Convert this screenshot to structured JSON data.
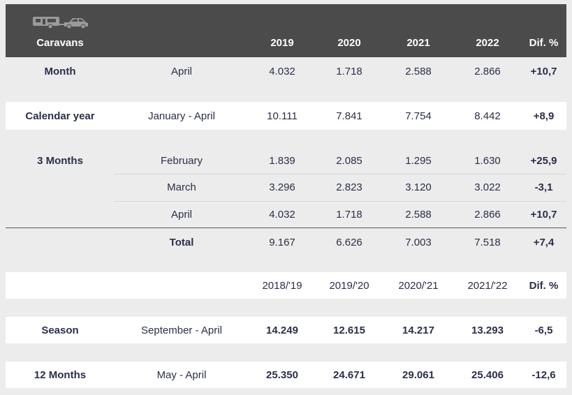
{
  "header": {
    "icon": "caravan-and-car-icon",
    "title": "Caravans",
    "columns": [
      "2019",
      "2020",
      "2021",
      "2022",
      "Dif. %"
    ]
  },
  "rows": {
    "month": {
      "label": "Month",
      "period": "April",
      "values": [
        "4.032",
        "1.718",
        "2.588",
        "2.866"
      ],
      "dif": "+10,7"
    },
    "calendar": {
      "label": "Calendar year",
      "period": "January - April",
      "values": [
        "10.111",
        "7.841",
        "7.754",
        "8.442"
      ],
      "dif": "+8,9"
    },
    "three_months": [
      {
        "label": "3 Months",
        "period": "February",
        "values": [
          "1.839",
          "2.085",
          "1.295",
          "1.630"
        ],
        "dif": "+25,9"
      },
      {
        "label": "",
        "period": "March",
        "values": [
          "3.296",
          "2.823",
          "3.120",
          "3.022"
        ],
        "dif": "-3,1"
      },
      {
        "label": "",
        "period": "April",
        "values": [
          "4.032",
          "1.718",
          "2.588",
          "2.866"
        ],
        "dif": "+10,7"
      }
    ],
    "total": {
      "label": "",
      "period": "Total",
      "values": [
        "9.167",
        "6.626",
        "7.003",
        "7.518"
      ],
      "dif": "+7,4"
    }
  },
  "season_header": {
    "columns": [
      "2018/'19",
      "2019/'20",
      "2020/'21",
      "2021/'22",
      "Dif. %"
    ]
  },
  "season": {
    "label": "Season",
    "period": "September - April",
    "values": [
      "14.249",
      "12.615",
      "14.217",
      "13.293"
    ],
    "dif": "-6,5"
  },
  "twelve": {
    "label": "12 Months",
    "period": "May - April",
    "values": [
      "25.350",
      "24.671",
      "29.061",
      "25.406"
    ],
    "dif": "-12,6"
  },
  "colors": {
    "header_bg": "#4b4b4b",
    "text": "#2b2f4a",
    "page_bg": "#ececec",
    "row_white": "#ffffff"
  }
}
